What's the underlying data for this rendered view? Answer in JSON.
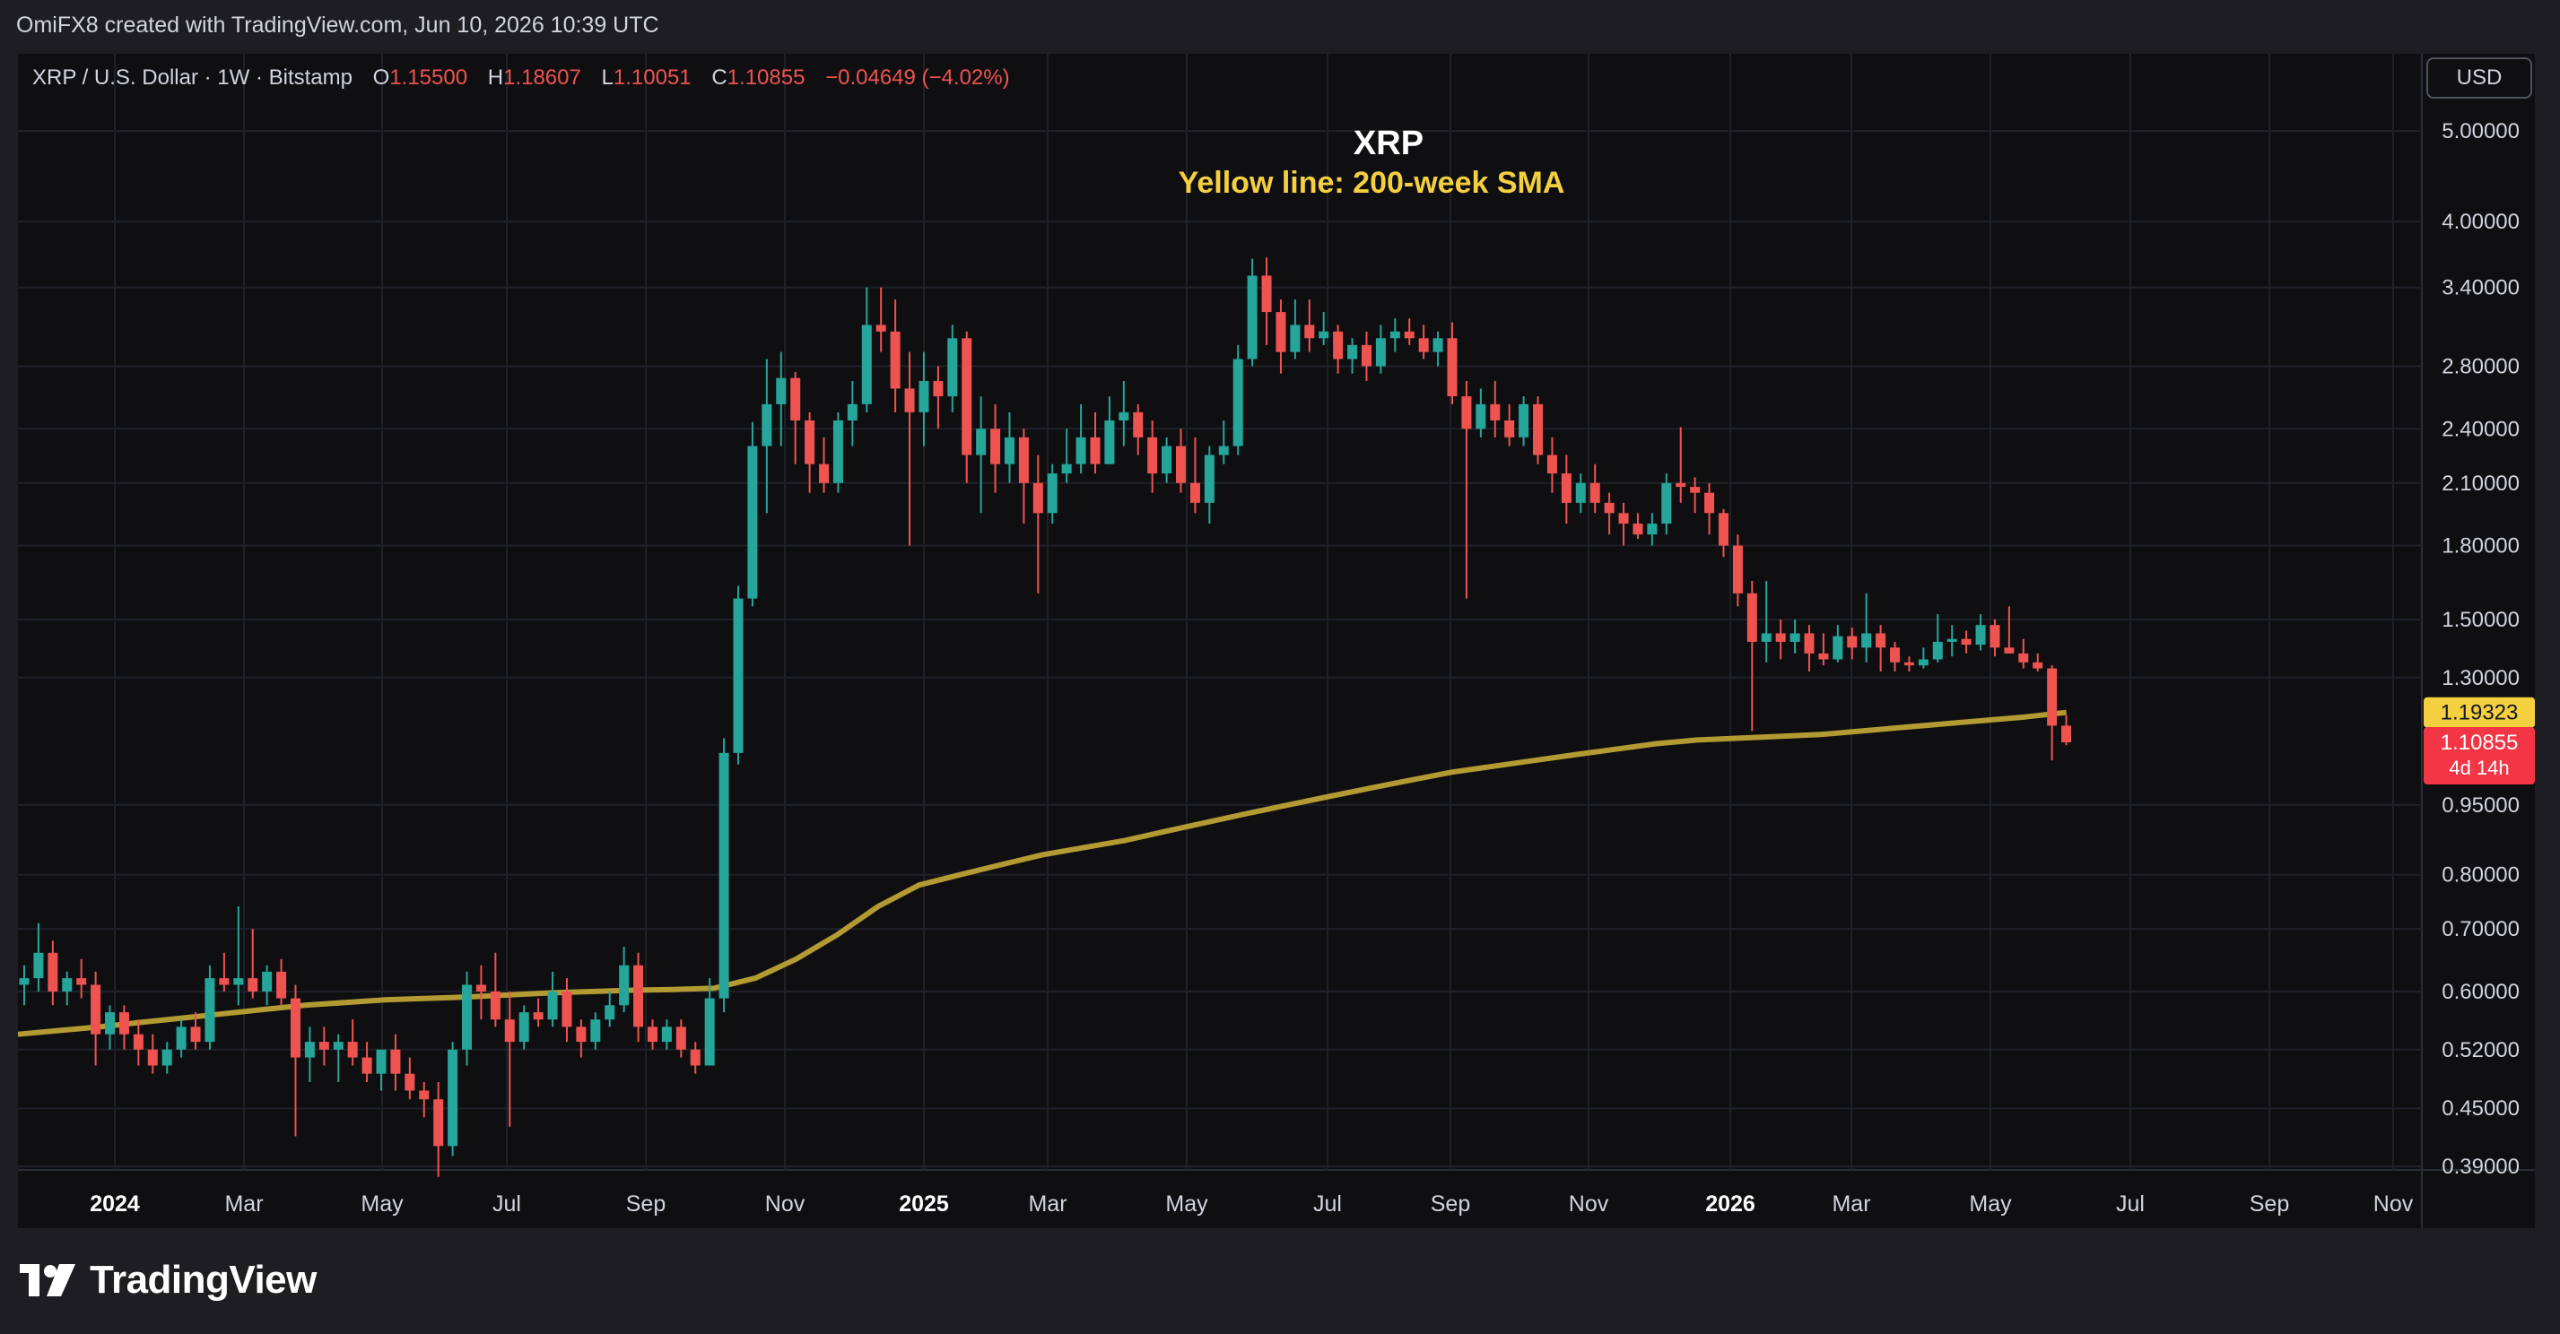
{
  "header": {
    "credit": "OmiFX8 created with TradingView.com, Jun 10, 2026 10:39 UTC"
  },
  "legend": {
    "symbol": "XRP / U.S. Dollar · 1W · Bitstamp",
    "o_label": "O",
    "o_value": "1.15500",
    "h_label": "H",
    "h_value": "1.18607",
    "l_label": "L",
    "l_value": "1.10051",
    "c_label": "C",
    "c_value": "1.10855",
    "change": "−0.04649 (−4.02%)"
  },
  "currency_button": "USD",
  "brand": {
    "name": "TradingView"
  },
  "colors": {
    "up": "#26a69a",
    "down": "#ef5350",
    "sma": "#b39a32",
    "annotation": "#f4d03f",
    "bg": "#0f0f12"
  },
  "chart_data": {
    "type": "candlestick",
    "title": "XRP",
    "subtitle": "Yellow line: 200-week SMA",
    "y_scale": "log",
    "y_ticks": [
      "5.00000",
      "4.00000",
      "3.40000",
      "2.80000",
      "2.40000",
      "2.10000",
      "1.80000",
      "1.50000",
      "1.30000",
      "0.95000",
      "0.80000",
      "0.70000",
      "0.60000",
      "0.52000",
      "0.45000",
      "0.39000"
    ],
    "x_ticks": [
      "2024",
      "Mar",
      "May",
      "Jul",
      "Sep",
      "Nov",
      "2025",
      "Mar",
      "May",
      "Jul",
      "Sep",
      "Nov",
      "2026",
      "Mar",
      "May",
      "Jul",
      "Sep",
      "Nov"
    ],
    "sma_label": "1.19323",
    "price_label": "1.10855",
    "countdown_label": "4d 14h",
    "sma": [
      0.54,
      0.545,
      0.55,
      0.556,
      0.562,
      0.568,
      0.574,
      0.58,
      0.584,
      0.588,
      0.59,
      0.592,
      0.595,
      0.598,
      0.6,
      0.602,
      0.603,
      0.605,
      0.62,
      0.65,
      0.69,
      0.74,
      0.78,
      0.8,
      0.82,
      0.84,
      0.855,
      0.87,
      0.89,
      0.91,
      0.93,
      0.95,
      0.97,
      0.99,
      1.01,
      1.03,
      1.045,
      1.06,
      1.075,
      1.09,
      1.105,
      1.115,
      1.12,
      1.125,
      1.13,
      1.14,
      1.15,
      1.16,
      1.17,
      1.18,
      1.19323
    ],
    "candles": [
      {
        "o": 0.61,
        "h": 0.64,
        "l": 0.58,
        "c": 0.62
      },
      {
        "o": 0.62,
        "h": 0.71,
        "l": 0.6,
        "c": 0.66
      },
      {
        "o": 0.66,
        "h": 0.68,
        "l": 0.58,
        "c": 0.6
      },
      {
        "o": 0.6,
        "h": 0.63,
        "l": 0.58,
        "c": 0.62
      },
      {
        "o": 0.62,
        "h": 0.65,
        "l": 0.59,
        "c": 0.61
      },
      {
        "o": 0.61,
        "h": 0.63,
        "l": 0.5,
        "c": 0.54
      },
      {
        "o": 0.54,
        "h": 0.58,
        "l": 0.52,
        "c": 0.57
      },
      {
        "o": 0.57,
        "h": 0.58,
        "l": 0.52,
        "c": 0.54
      },
      {
        "o": 0.54,
        "h": 0.56,
        "l": 0.5,
        "c": 0.52
      },
      {
        "o": 0.52,
        "h": 0.54,
        "l": 0.49,
        "c": 0.5
      },
      {
        "o": 0.5,
        "h": 0.53,
        "l": 0.49,
        "c": 0.52
      },
      {
        "o": 0.52,
        "h": 0.56,
        "l": 0.51,
        "c": 0.55
      },
      {
        "o": 0.55,
        "h": 0.57,
        "l": 0.52,
        "c": 0.53
      },
      {
        "o": 0.53,
        "h": 0.64,
        "l": 0.52,
        "c": 0.62
      },
      {
        "o": 0.62,
        "h": 0.66,
        "l": 0.6,
        "c": 0.61
      },
      {
        "o": 0.61,
        "h": 0.74,
        "l": 0.58,
        "c": 0.62
      },
      {
        "o": 0.62,
        "h": 0.7,
        "l": 0.59,
        "c": 0.6
      },
      {
        "o": 0.6,
        "h": 0.64,
        "l": 0.58,
        "c": 0.63
      },
      {
        "o": 0.63,
        "h": 0.65,
        "l": 0.58,
        "c": 0.59
      },
      {
        "o": 0.59,
        "h": 0.61,
        "l": 0.42,
        "c": 0.51
      },
      {
        "o": 0.51,
        "h": 0.55,
        "l": 0.48,
        "c": 0.53
      },
      {
        "o": 0.53,
        "h": 0.55,
        "l": 0.5,
        "c": 0.52
      },
      {
        "o": 0.52,
        "h": 0.54,
        "l": 0.48,
        "c": 0.53
      },
      {
        "o": 0.53,
        "h": 0.56,
        "l": 0.5,
        "c": 0.51
      },
      {
        "o": 0.51,
        "h": 0.53,
        "l": 0.48,
        "c": 0.49
      },
      {
        "o": 0.49,
        "h": 0.52,
        "l": 0.47,
        "c": 0.52
      },
      {
        "o": 0.52,
        "h": 0.54,
        "l": 0.47,
        "c": 0.49
      },
      {
        "o": 0.49,
        "h": 0.51,
        "l": 0.46,
        "c": 0.47
      },
      {
        "o": 0.47,
        "h": 0.48,
        "l": 0.44,
        "c": 0.46
      },
      {
        "o": 0.46,
        "h": 0.48,
        "l": 0.38,
        "c": 0.41
      },
      {
        "o": 0.41,
        "h": 0.53,
        "l": 0.4,
        "c": 0.52
      },
      {
        "o": 0.52,
        "h": 0.63,
        "l": 0.5,
        "c": 0.61
      },
      {
        "o": 0.61,
        "h": 0.64,
        "l": 0.56,
        "c": 0.6
      },
      {
        "o": 0.6,
        "h": 0.66,
        "l": 0.55,
        "c": 0.56
      },
      {
        "o": 0.56,
        "h": 0.6,
        "l": 0.43,
        "c": 0.53
      },
      {
        "o": 0.53,
        "h": 0.58,
        "l": 0.52,
        "c": 0.57
      },
      {
        "o": 0.57,
        "h": 0.59,
        "l": 0.55,
        "c": 0.56
      },
      {
        "o": 0.56,
        "h": 0.63,
        "l": 0.55,
        "c": 0.6
      },
      {
        "o": 0.6,
        "h": 0.62,
        "l": 0.53,
        "c": 0.55
      },
      {
        "o": 0.55,
        "h": 0.56,
        "l": 0.51,
        "c": 0.53
      },
      {
        "o": 0.53,
        "h": 0.57,
        "l": 0.52,
        "c": 0.56
      },
      {
        "o": 0.56,
        "h": 0.6,
        "l": 0.55,
        "c": 0.58
      },
      {
        "o": 0.58,
        "h": 0.67,
        "l": 0.57,
        "c": 0.64
      },
      {
        "o": 0.64,
        "h": 0.66,
        "l": 0.53,
        "c": 0.55
      },
      {
        "o": 0.55,
        "h": 0.56,
        "l": 0.52,
        "c": 0.53
      },
      {
        "o": 0.53,
        "h": 0.56,
        "l": 0.52,
        "c": 0.55
      },
      {
        "o": 0.55,
        "h": 0.56,
        "l": 0.51,
        "c": 0.52
      },
      {
        "o": 0.52,
        "h": 0.53,
        "l": 0.49,
        "c": 0.5
      },
      {
        "o": 0.5,
        "h": 0.62,
        "l": 0.5,
        "c": 0.59
      },
      {
        "o": 0.59,
        "h": 1.12,
        "l": 0.57,
        "c": 1.08
      },
      {
        "o": 1.08,
        "h": 1.63,
        "l": 1.05,
        "c": 1.58
      },
      {
        "o": 1.58,
        "h": 2.44,
        "l": 1.55,
        "c": 2.3
      },
      {
        "o": 2.3,
        "h": 2.85,
        "l": 1.95,
        "c": 2.55
      },
      {
        "o": 2.55,
        "h": 2.9,
        "l": 2.3,
        "c": 2.72
      },
      {
        "o": 2.72,
        "h": 2.76,
        "l": 2.2,
        "c": 2.45
      },
      {
        "o": 2.45,
        "h": 2.5,
        "l": 2.05,
        "c": 2.2
      },
      {
        "o": 2.2,
        "h": 2.35,
        "l": 2.05,
        "c": 2.1
      },
      {
        "o": 2.1,
        "h": 2.5,
        "l": 2.05,
        "c": 2.45
      },
      {
        "o": 2.45,
        "h": 2.7,
        "l": 2.3,
        "c": 2.55
      },
      {
        "o": 2.55,
        "h": 3.4,
        "l": 2.5,
        "c": 3.1
      },
      {
        "o": 3.1,
        "h": 3.4,
        "l": 2.9,
        "c": 3.05
      },
      {
        "o": 3.05,
        "h": 3.3,
        "l": 2.5,
        "c": 2.65
      },
      {
        "o": 2.65,
        "h": 2.9,
        "l": 1.8,
        "c": 2.5
      },
      {
        "o": 2.5,
        "h": 2.9,
        "l": 2.3,
        "c": 2.7
      },
      {
        "o": 2.7,
        "h": 2.8,
        "l": 2.4,
        "c": 2.6
      },
      {
        "o": 2.6,
        "h": 3.1,
        "l": 2.5,
        "c": 3.0
      },
      {
        "o": 3.0,
        "h": 3.05,
        "l": 2.1,
        "c": 2.25
      },
      {
        "o": 2.25,
        "h": 2.6,
        "l": 1.95,
        "c": 2.4
      },
      {
        "o": 2.4,
        "h": 2.55,
        "l": 2.05,
        "c": 2.2
      },
      {
        "o": 2.2,
        "h": 2.5,
        "l": 2.1,
        "c": 2.35
      },
      {
        "o": 2.35,
        "h": 2.4,
        "l": 1.9,
        "c": 2.1
      },
      {
        "o": 2.1,
        "h": 2.25,
        "l": 1.6,
        "c": 1.95
      },
      {
        "o": 1.95,
        "h": 2.2,
        "l": 1.9,
        "c": 2.15
      },
      {
        "o": 2.15,
        "h": 2.4,
        "l": 2.1,
        "c": 2.2
      },
      {
        "o": 2.2,
        "h": 2.55,
        "l": 2.15,
        "c": 2.35
      },
      {
        "o": 2.35,
        "h": 2.5,
        "l": 2.15,
        "c": 2.2
      },
      {
        "o": 2.2,
        "h": 2.6,
        "l": 2.2,
        "c": 2.45
      },
      {
        "o": 2.45,
        "h": 2.7,
        "l": 2.3,
        "c": 2.5
      },
      {
        "o": 2.5,
        "h": 2.55,
        "l": 2.25,
        "c": 2.35
      },
      {
        "o": 2.35,
        "h": 2.45,
        "l": 2.05,
        "c": 2.15
      },
      {
        "o": 2.15,
        "h": 2.35,
        "l": 2.1,
        "c": 2.3
      },
      {
        "o": 2.3,
        "h": 2.4,
        "l": 2.05,
        "c": 2.1
      },
      {
        "o": 2.1,
        "h": 2.35,
        "l": 1.95,
        "c": 2.0
      },
      {
        "o": 2.0,
        "h": 2.3,
        "l": 1.9,
        "c": 2.25
      },
      {
        "o": 2.25,
        "h": 2.45,
        "l": 2.2,
        "c": 2.3
      },
      {
        "o": 2.3,
        "h": 2.95,
        "l": 2.25,
        "c": 2.85
      },
      {
        "o": 2.85,
        "h": 3.65,
        "l": 2.8,
        "c": 3.5
      },
      {
        "o": 3.5,
        "h": 3.66,
        "l": 2.95,
        "c": 3.2
      },
      {
        "o": 3.2,
        "h": 3.3,
        "l": 2.75,
        "c": 2.9
      },
      {
        "o": 2.9,
        "h": 3.3,
        "l": 2.85,
        "c": 3.1
      },
      {
        "o": 3.1,
        "h": 3.3,
        "l": 2.9,
        "c": 3.0
      },
      {
        "o": 3.0,
        "h": 3.2,
        "l": 2.95,
        "c": 3.05
      },
      {
        "o": 3.05,
        "h": 3.1,
        "l": 2.75,
        "c": 2.85
      },
      {
        "o": 2.85,
        "h": 3.0,
        "l": 2.75,
        "c": 2.95
      },
      {
        "o": 2.95,
        "h": 3.05,
        "l": 2.7,
        "c": 2.8
      },
      {
        "o": 2.8,
        "h": 3.1,
        "l": 2.75,
        "c": 3.0
      },
      {
        "o": 3.0,
        "h": 3.15,
        "l": 2.9,
        "c": 3.05
      },
      {
        "o": 3.05,
        "h": 3.15,
        "l": 2.95,
        "c": 3.0
      },
      {
        "o": 3.0,
        "h": 3.1,
        "l": 2.85,
        "c": 2.9
      },
      {
        "o": 2.9,
        "h": 3.05,
        "l": 2.8,
        "c": 3.0
      },
      {
        "o": 3.0,
        "h": 3.12,
        "l": 2.55,
        "c": 2.6
      },
      {
        "o": 2.6,
        "h": 2.7,
        "l": 1.58,
        "c": 2.4
      },
      {
        "o": 2.4,
        "h": 2.65,
        "l": 2.35,
        "c": 2.55
      },
      {
        "o": 2.55,
        "h": 2.7,
        "l": 2.35,
        "c": 2.45
      },
      {
        "o": 2.45,
        "h": 2.55,
        "l": 2.3,
        "c": 2.35
      },
      {
        "o": 2.35,
        "h": 2.6,
        "l": 2.3,
        "c": 2.55
      },
      {
        "o": 2.55,
        "h": 2.6,
        "l": 2.2,
        "c": 2.25
      },
      {
        "o": 2.25,
        "h": 2.35,
        "l": 2.05,
        "c": 2.15
      },
      {
        "o": 2.15,
        "h": 2.25,
        "l": 1.9,
        "c": 2.0
      },
      {
        "o": 2.0,
        "h": 2.15,
        "l": 1.95,
        "c": 2.1
      },
      {
        "o": 2.1,
        "h": 2.2,
        "l": 1.95,
        "c": 2.0
      },
      {
        "o": 2.0,
        "h": 2.05,
        "l": 1.85,
        "c": 1.95
      },
      {
        "o": 1.95,
        "h": 2.0,
        "l": 1.8,
        "c": 1.9
      },
      {
        "o": 1.9,
        "h": 1.95,
        "l": 1.83,
        "c": 1.85
      },
      {
        "o": 1.85,
        "h": 1.95,
        "l": 1.8,
        "c": 1.9
      },
      {
        "o": 1.9,
        "h": 2.15,
        "l": 1.85,
        "c": 2.1
      },
      {
        "o": 2.1,
        "h": 2.41,
        "l": 2.0,
        "c": 2.08
      },
      {
        "o": 2.08,
        "h": 2.13,
        "l": 1.95,
        "c": 2.05
      },
      {
        "o": 2.05,
        "h": 2.1,
        "l": 1.85,
        "c": 1.95
      },
      {
        "o": 1.95,
        "h": 1.97,
        "l": 1.75,
        "c": 1.8
      },
      {
        "o": 1.8,
        "h": 1.85,
        "l": 1.55,
        "c": 1.6
      },
      {
        "o": 1.6,
        "h": 1.65,
        "l": 1.14,
        "c": 1.42
      },
      {
        "o": 1.42,
        "h": 1.65,
        "l": 1.35,
        "c": 1.45
      },
      {
        "o": 1.45,
        "h": 1.5,
        "l": 1.36,
        "c": 1.42
      },
      {
        "o": 1.42,
        "h": 1.5,
        "l": 1.38,
        "c": 1.45
      },
      {
        "o": 1.45,
        "h": 1.48,
        "l": 1.32,
        "c": 1.38
      },
      {
        "o": 1.38,
        "h": 1.45,
        "l": 1.34,
        "c": 1.36
      },
      {
        "o": 1.36,
        "h": 1.48,
        "l": 1.35,
        "c": 1.44
      },
      {
        "o": 1.44,
        "h": 1.47,
        "l": 1.36,
        "c": 1.4
      },
      {
        "o": 1.4,
        "h": 1.6,
        "l": 1.35,
        "c": 1.45
      },
      {
        "o": 1.45,
        "h": 1.48,
        "l": 1.32,
        "c": 1.4
      },
      {
        "o": 1.4,
        "h": 1.42,
        "l": 1.32,
        "c": 1.35
      },
      {
        "o": 1.35,
        "h": 1.37,
        "l": 1.32,
        "c": 1.34
      },
      {
        "o": 1.34,
        "h": 1.4,
        "l": 1.33,
        "c": 1.36
      },
      {
        "o": 1.36,
        "h": 1.52,
        "l": 1.35,
        "c": 1.42
      },
      {
        "o": 1.42,
        "h": 1.48,
        "l": 1.37,
        "c": 1.43
      },
      {
        "o": 1.43,
        "h": 1.46,
        "l": 1.38,
        "c": 1.41
      },
      {
        "o": 1.41,
        "h": 1.52,
        "l": 1.39,
        "c": 1.48
      },
      {
        "o": 1.48,
        "h": 1.5,
        "l": 1.37,
        "c": 1.4
      },
      {
        "o": 1.4,
        "h": 1.55,
        "l": 1.38,
        "c": 1.38
      },
      {
        "o": 1.38,
        "h": 1.43,
        "l": 1.33,
        "c": 1.35
      },
      {
        "o": 1.35,
        "h": 1.38,
        "l": 1.32,
        "c": 1.33
      },
      {
        "o": 1.33,
        "h": 1.34,
        "l": 1.06,
        "c": 1.155
      },
      {
        "o": 1.155,
        "h": 1.18607,
        "l": 1.10051,
        "c": 1.10855
      }
    ]
  }
}
